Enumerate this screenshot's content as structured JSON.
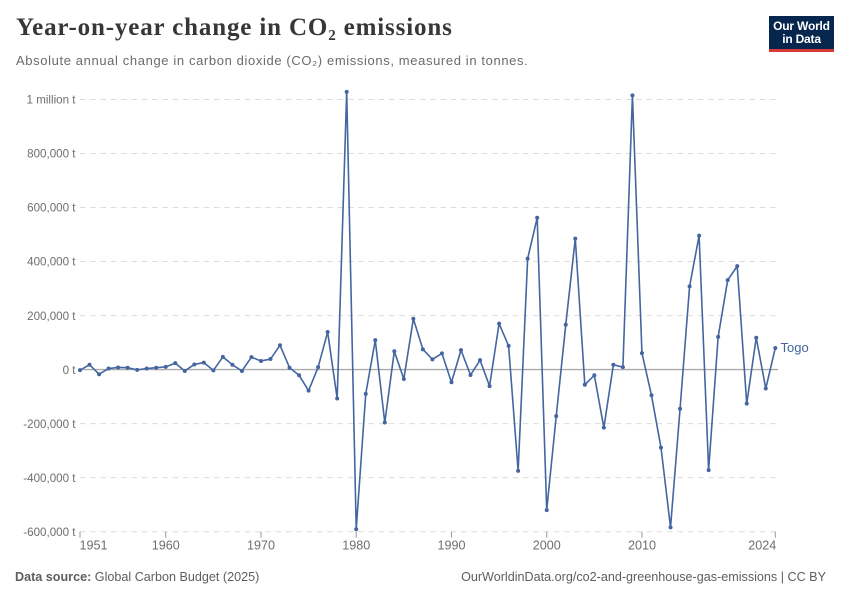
{
  "header": {
    "title": "Year-on-year change in CO₂ emissions",
    "subtitle": "Absolute annual change in carbon dioxide (CO₂) emissions, measured in tonnes."
  },
  "logo": {
    "line1": "Our World",
    "line2": "in Data",
    "background_color": "#06264d",
    "bar_color": "#d93a35"
  },
  "entity_label": "Togo",
  "chart_data": {
    "type": "line",
    "title": "Year-on-year change in CO₂ emissions",
    "subtitle": "Absolute annual change in carbon dioxide (CO₂) emissions, measured in tonnes.",
    "xlabel": "",
    "ylabel": "",
    "grid": true,
    "legend_position": "end-of-line",
    "xlim": [
      1951,
      2024
    ],
    "ylim": [
      -600000,
      1000000
    ],
    "x_ticks": [
      1951,
      1960,
      1970,
      1980,
      1990,
      2000,
      2010,
      2024
    ],
    "y_ticks": [
      {
        "value": 1000000,
        "label": "1 million t"
      },
      {
        "value": 800000,
        "label": "800,000 t"
      },
      {
        "value": 600000,
        "label": "600,000 t"
      },
      {
        "value": 400000,
        "label": "400,000 t"
      },
      {
        "value": 200000,
        "label": "200,000 t"
      },
      {
        "value": 0,
        "label": "0 t"
      },
      {
        "value": -200000,
        "label": "-200,000 t"
      },
      {
        "value": -400000,
        "label": "-400,000 t"
      },
      {
        "value": -600000,
        "label": "-600,000 t"
      }
    ],
    "x": [
      1951,
      1952,
      1953,
      1954,
      1955,
      1956,
      1957,
      1958,
      1959,
      1960,
      1961,
      1962,
      1963,
      1964,
      1965,
      1966,
      1967,
      1968,
      1969,
      1970,
      1971,
      1972,
      1973,
      1974,
      1975,
      1976,
      1977,
      1978,
      1979,
      1980,
      1981,
      1982,
      1983,
      1984,
      1985,
      1986,
      1987,
      1988,
      1989,
      1990,
      1991,
      1992,
      1993,
      1994,
      1995,
      1996,
      1997,
      1998,
      1999,
      2000,
      2001,
      2002,
      2003,
      2004,
      2005,
      2006,
      2007,
      2008,
      2009,
      2010,
      2011,
      2012,
      2013,
      2014,
      2015,
      2016,
      2017,
      2018,
      2019,
      2020,
      2021,
      2022,
      2023,
      2024
    ],
    "series": [
      {
        "name": "Togo",
        "values": [
          -2000,
          18000,
          -17000,
          4000,
          8000,
          7000,
          -1000,
          4000,
          7000,
          10000,
          24000,
          -5000,
          19000,
          26000,
          -3000,
          47000,
          18000,
          -5000,
          46000,
          32000,
          39000,
          90000,
          7000,
          -21000,
          -78000,
          9000,
          139000,
          -107000,
          1028000,
          -591000,
          -90000,
          109000,
          -196000,
          68000,
          -35000,
          188000,
          75000,
          38000,
          60000,
          -47000,
          72000,
          -20000,
          35000,
          -61000,
          170000,
          88000,
          -375000,
          411000,
          562000,
          -520000,
          -172000,
          166000,
          485000,
          -56000,
          -21000,
          -215000,
          18000,
          9000,
          1015000,
          61000,
          -95000,
          -289000,
          -584000,
          -145000,
          308000,
          496000,
          -372000,
          121000,
          331000,
          383000,
          -126000,
          118000,
          -70000,
          80000
        ]
      }
    ]
  },
  "footer": {
    "source_prefix": "Data source:",
    "source": "Global Carbon Budget (2025)",
    "attribution": "OurWorldinData.org/co2-and-greenhouse-gas-emissions | CC BY"
  },
  "colors": {
    "line": "#4465a0",
    "grid": "#dcdcdc",
    "zero_line": "#ababab",
    "tick_mark": "#999999",
    "axis_label": "#6e6e6e",
    "title_text": "#373737",
    "subtitle_text": "#6b6b6b",
    "footer_text": "#5e5e5e"
  }
}
